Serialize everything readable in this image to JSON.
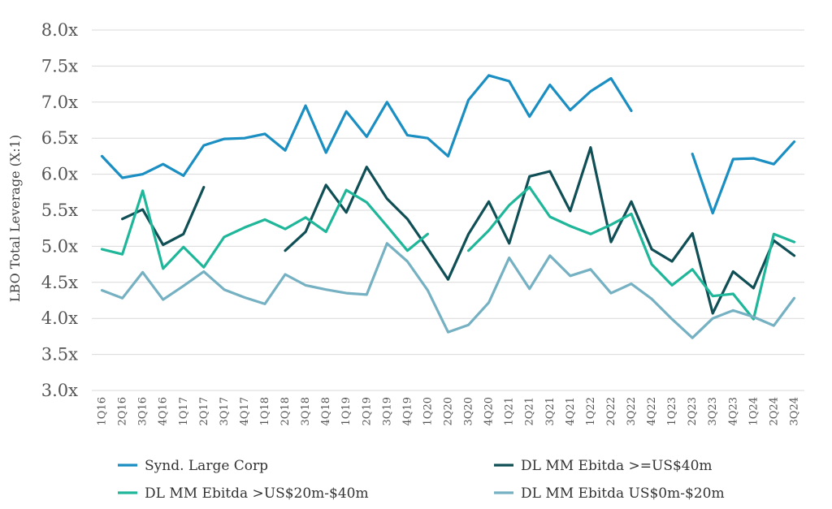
{
  "chart_data": {
    "type": "line",
    "ylabel": "LBO Total Leverage (X:1)",
    "xlabel": "",
    "ylim": [
      3.0,
      8.0
    ],
    "ytick_values": [
      3.0,
      3.5,
      4.0,
      4.5,
      5.0,
      5.5,
      6.0,
      6.5,
      7.0,
      7.5,
      8.0
    ],
    "ytick_labels": [
      "3.0x",
      "3.5x",
      "4.0x",
      "4.5x",
      "5.0x",
      "5.5x",
      "6.0x",
      "6.5x",
      "7.0x",
      "7.5x",
      "8.0x"
    ],
    "grid": true,
    "legend_position": "bottom",
    "categories": [
      "1Q16",
      "2Q16",
      "3Q16",
      "4Q16",
      "1Q17",
      "2Q17",
      "3Q17",
      "4Q17",
      "1Q18",
      "2Q18",
      "3Q18",
      "4Q18",
      "1Q19",
      "2Q19",
      "3Q19",
      "4Q19",
      "1Q20",
      "2Q20",
      "3Q20",
      "4Q20",
      "1Q21",
      "2Q21",
      "3Q21",
      "4Q21",
      "1Q22",
      "2Q22",
      "3Q22",
      "4Q22",
      "1Q23",
      "2Q23",
      "3Q23",
      "4Q23",
      "1Q24",
      "2Q24",
      "3Q24"
    ],
    "xticks_shown": [
      "1Q16",
      "2Q16",
      "3Q16",
      "4Q16",
      "1Q17",
      "2Q17",
      "3Q17",
      "4Q17",
      "1Q18",
      "2Q18",
      "3Q18",
      "4Q18",
      "1Q19",
      "2Q19",
      "3Q19",
      "4Q19",
      "1Q20",
      "2Q20",
      "3Q20",
      "4Q20",
      "1Q21",
      "2Q21",
      "3Q21",
      "4Q21",
      "1Q22",
      "2Q22",
      "3Q22",
      "4Q22",
      "1Q23",
      "2Q23",
      "3Q23",
      "4Q23",
      "1Q24",
      "2Q24",
      "3Q24"
    ],
    "series": [
      {
        "name": "Synd. Large Corp",
        "color": "#1b8ec2",
        "x": [
          "1Q16",
          "2Q16",
          "3Q16",
          "4Q16",
          "1Q17",
          "2Q17",
          "3Q17",
          "4Q17",
          "1Q18",
          "2Q18",
          "3Q18",
          "4Q18",
          "1Q19",
          "2Q19",
          "3Q19",
          "4Q19",
          "1Q20",
          "2Q20",
          "3Q20",
          "4Q20",
          "1Q21",
          "2Q21",
          "3Q21",
          "4Q21",
          "1Q22",
          "2Q22",
          "3Q22",
          null,
          "1Q23",
          "2Q23",
          "3Q23",
          "4Q23",
          "1Q24",
          "2Q24",
          "3Q24"
        ],
        "values": [
          6.25,
          5.95,
          6.0,
          6.14,
          5.98,
          6.4,
          6.49,
          6.5,
          6.56,
          6.33,
          6.95,
          6.3,
          6.87,
          6.52,
          7.0,
          6.54,
          6.5,
          6.25,
          7.03,
          7.37,
          7.29,
          6.8,
          7.24,
          6.89,
          7.15,
          7.33,
          6.88,
          null,
          null,
          6.28,
          5.46,
          6.21,
          6.22,
          6.14,
          6.45
        ]
      },
      {
        "name": "DL MM Ebitda >=US$40m",
        "color": "#0f4f55",
        "values": [
          null,
          5.38,
          5.51,
          5.02,
          5.17,
          5.82,
          null,
          null,
          null,
          4.94,
          5.2,
          5.85,
          5.47,
          6.1,
          5.66,
          5.38,
          4.97,
          4.54,
          5.17,
          5.62,
          5.04,
          5.97,
          6.04,
          5.49,
          6.37,
          5.06,
          5.62,
          4.96,
          4.79,
          5.18,
          4.07,
          4.65,
          4.42,
          5.08,
          4.87
        ]
      },
      {
        "name": "DL MM Ebitda >US$20m-$40m",
        "color": "#1fb699",
        "values": [
          4.96,
          4.89,
          5.77,
          4.69,
          4.99,
          4.71,
          5.13,
          5.26,
          5.37,
          5.24,
          5.4,
          5.2,
          5.78,
          5.61,
          5.28,
          4.94,
          5.17,
          null,
          4.94,
          5.22,
          5.57,
          5.82,
          5.41,
          5.28,
          5.17,
          5.3,
          5.45,
          4.75,
          4.46,
          4.68,
          4.31,
          4.34,
          3.99,
          5.17,
          5.06
        ]
      },
      {
        "name": "DL MM Ebitda US$0m-$20m",
        "color": "#75b1c2",
        "values": [
          4.39,
          4.28,
          4.64,
          4.26,
          4.45,
          4.65,
          4.4,
          4.29,
          4.2,
          4.61,
          4.46,
          4.4,
          4.35,
          4.33,
          5.04,
          4.79,
          4.39,
          3.81,
          3.91,
          4.22,
          4.84,
          4.41,
          4.87,
          4.59,
          4.68,
          4.35,
          4.48,
          4.27,
          3.99,
          3.73,
          4.0,
          4.11,
          4.02,
          3.9,
          4.28
        ]
      }
    ]
  }
}
